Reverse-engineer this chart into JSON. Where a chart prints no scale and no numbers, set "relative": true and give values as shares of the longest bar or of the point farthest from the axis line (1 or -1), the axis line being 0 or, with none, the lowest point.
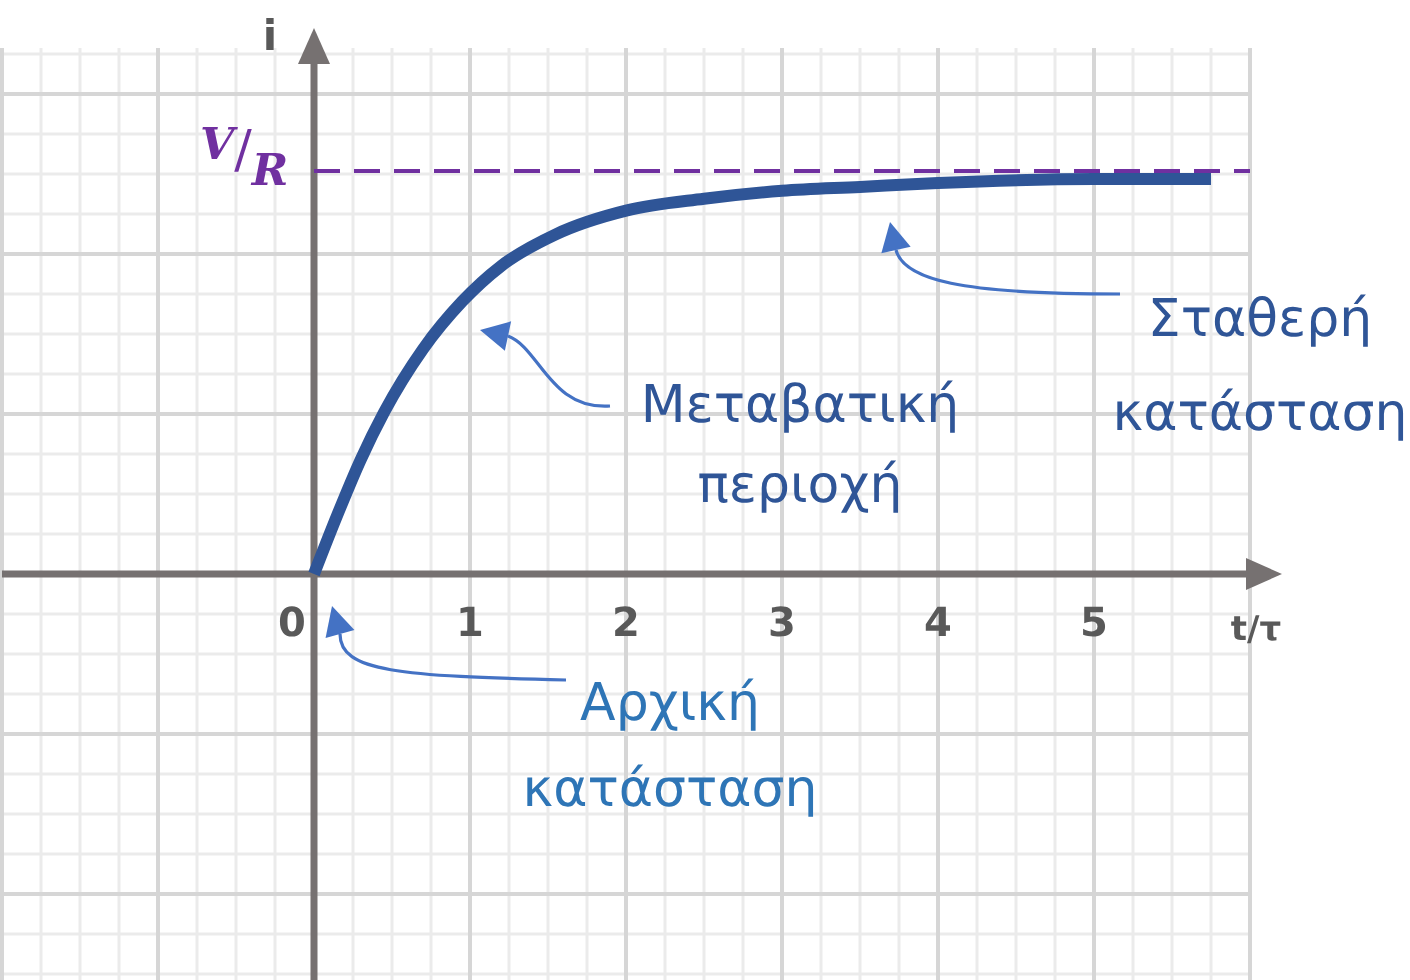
{
  "chart_data": {
    "type": "line",
    "xlabel": "t/τ",
    "ylabel": "i",
    "relative": true,
    "x": [
      0,
      0.15,
      0.3,
      0.45,
      0.7,
      0.95,
      1.2,
      1.55,
      2,
      2.5,
      3,
      3.5,
      4,
      5,
      5.75
    ],
    "series": [
      {
        "color": "#2f5597",
        "values": [
          0,
          0.15,
          0.29,
          0.41,
          0.57,
          0.69,
          0.78,
          0.86,
          0.92,
          0.95,
          0.97,
          0.98,
          0.99,
          1,
          1
        ]
      }
    ],
    "xlim": [
      -2,
      6
    ],
    "xticks": [
      0,
      1,
      2,
      3,
      4,
      5
    ],
    "grid": true,
    "ref_lines": [
      {
        "axis": "y",
        "value": 1.02,
        "label": "V/R",
        "color": "#7030a0",
        "line_style": "dashed"
      }
    ],
    "annotations": [
      "Μεταβατική περιοχή",
      "Σταθερή κατάσταση",
      "Αρχική κατάσταση"
    ]
  }
}
